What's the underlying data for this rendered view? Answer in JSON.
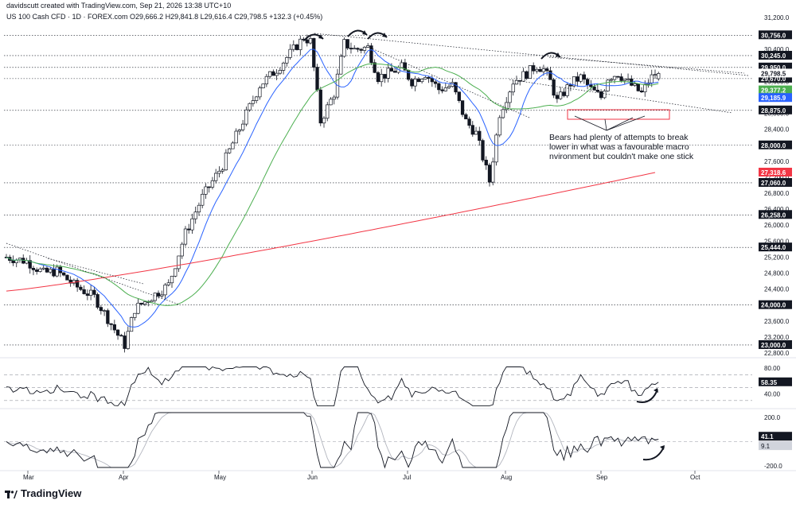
{
  "header": {
    "line1": "davidscutt created with TradingView.com, Sep 21, 2026 13:38 UTC+10",
    "line2": "US 100 Cash CFD · 1D · FOREX.com  O29,666.2  H29,841.8  L29,616.4  C29,798.5  +132.3 (+0.45%)"
  },
  "logo": {
    "text": "TradingView"
  },
  "colors": {
    "up": "#ffffff",
    "down": "#131722",
    "ma_fast": "#2962ff",
    "ma_mid": "#4caf50",
    "ma_slow": "#f23645",
    "grid": "#9598a1",
    "box": "#f23645"
  },
  "chart_data": [
    {
      "type": "candlestick",
      "title": "US 100 Cash CFD · 1D · FOREX.com",
      "x_labels": [
        "Mar",
        "Apr",
        "May",
        "Jun",
        "Jul",
        "Aug",
        "Sep",
        "Oct"
      ],
      "y_ticks": [
        "31,200.0",
        "30,800.0",
        "30,400.0",
        "30,000.0",
        "29,600.0",
        "29,200.0",
        "28,800.0",
        "28,400.0",
        "28,000.0",
        "27,600.0",
        "27,200.0",
        "26,800.0",
        "26,400.0",
        "26,000.0",
        "25,600.0",
        "25,200.0",
        "24,800.0",
        "24,400.0",
        "24,000.0",
        "23,600.0",
        "23,200.0",
        "22,800.0"
      ],
      "ylim": [
        22800,
        31200
      ],
      "horizontal_levels": [
        "30,756.0",
        "30,245.0",
        "29,950.0",
        "29,670.0",
        "28,875.0",
        "28,000.0",
        "27,060.0",
        "26,258.0",
        "25,444.0",
        "24,000.0",
        "23,000.0"
      ],
      "price_tags": [
        {
          "label": "29,798.5",
          "style": "plain"
        },
        {
          "label": "29,377.2",
          "style": "green"
        },
        {
          "label": "29,185.9",
          "style": "blue"
        },
        {
          "label": "27,318.6",
          "style": "red"
        }
      ],
      "ohlc_last": {
        "open": 29666.2,
        "high": 29841.8,
        "low": 29616.4,
        "close": 29798.5,
        "change": 132.3,
        "change_pct": 0.45
      },
      "moving_averages_last": {
        "blue": 29185.9,
        "green": 29377.2,
        "red": 27318.6
      },
      "annotation": "Bears had plenty of attempts to break lower in what was a favourable macro environment but couldn't make one stick"
    },
    {
      "type": "line",
      "panel": "oscillator-1",
      "y_ticks": [
        "80.00",
        "40.00"
      ],
      "guide_levels": [
        70,
        50,
        30
      ],
      "last_value": "58.35"
    },
    {
      "type": "line",
      "panel": "oscillator-2",
      "y_ticks": [
        "200.0",
        "-200.0"
      ],
      "series_last": [
        "41.1",
        "9.1"
      ]
    }
  ]
}
